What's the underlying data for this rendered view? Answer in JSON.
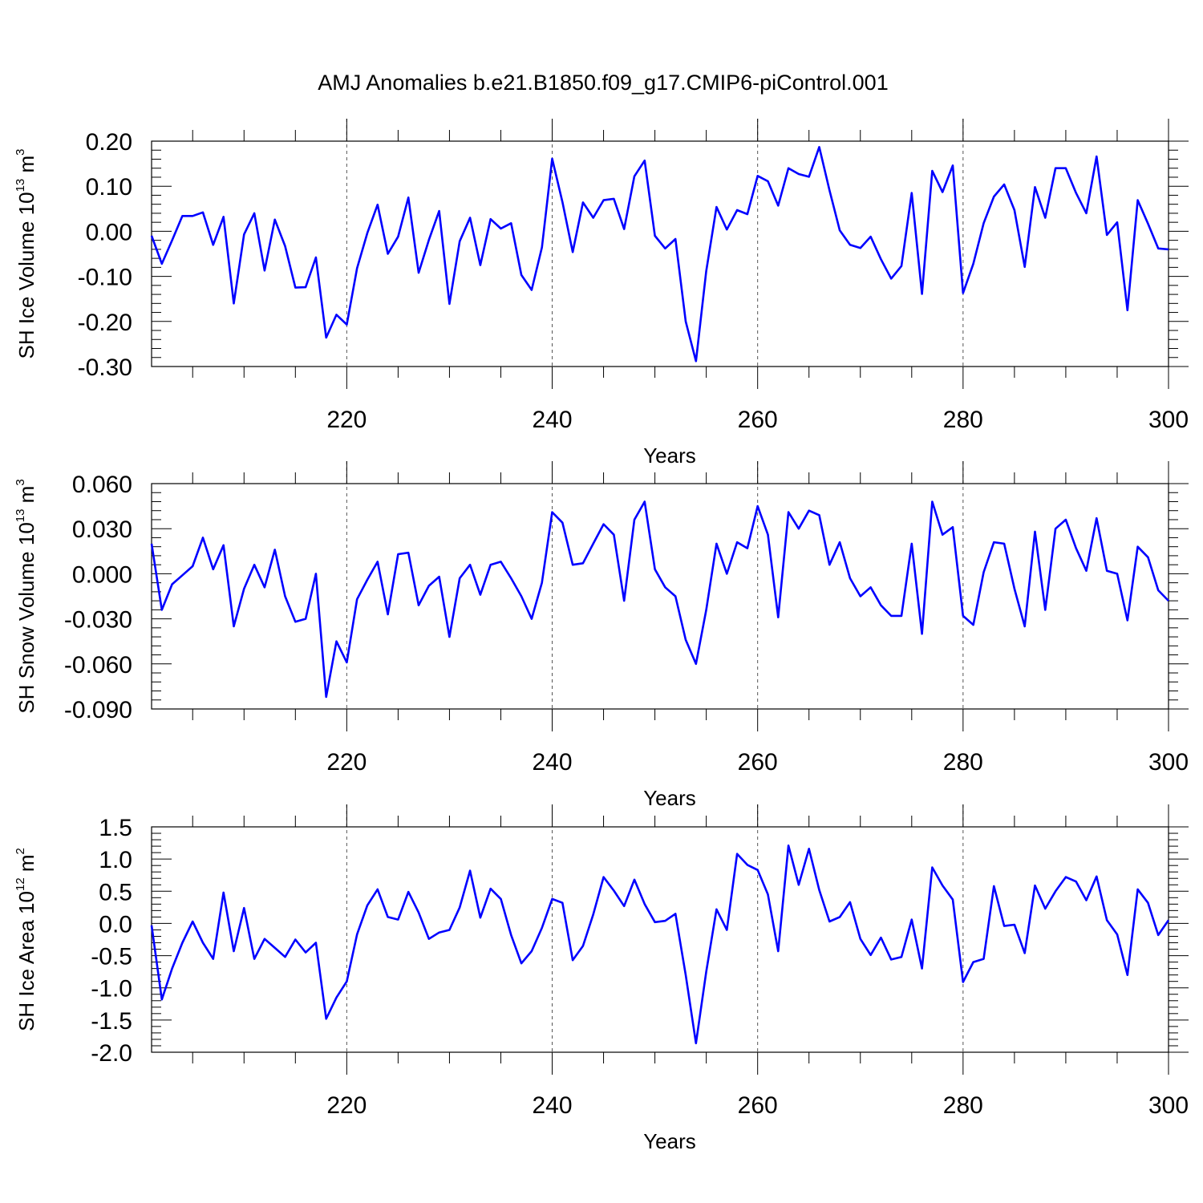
{
  "title": "AMJ Anomalies b.e21.B1850.f09_g17.CMIP6-piControl.001",
  "colors": {
    "line": "#0000ff",
    "axes": "#000000",
    "grid": "#555555"
  },
  "chart_data": [
    {
      "type": "line",
      "ylabel_main": "SH Ice Volume 10",
      "ylabel_exp": "13",
      "ylabel_unit": " m",
      "ylabel_unit_exp": "3",
      "xlabel": "Years",
      "xlim": [
        201,
        300
      ],
      "ylim": [
        -0.3,
        0.2
      ],
      "yticks": [
        0.2,
        0.1,
        0.0,
        -0.1,
        -0.2,
        -0.3
      ],
      "ytick_labels": [
        "0.20",
        "0.10",
        "0.00",
        "-0.10",
        "-0.20",
        "-0.30"
      ],
      "yminor_step": 0.02,
      "xticks": [
        220,
        240,
        260,
        280,
        300
      ],
      "xtick_labels": [
        "220",
        "240",
        "260",
        "280",
        "300"
      ],
      "grid_x": [
        220,
        240,
        260,
        280
      ],
      "series": [
        {
          "name": "SH Ice Volume",
          "x_start": 201,
          "values": [
            -0.01,
            -0.072,
            -0.02,
            0.034,
            0.034,
            0.042,
            -0.03,
            0.032,
            -0.16,
            -0.007,
            0.04,
            -0.087,
            0.026,
            -0.033,
            -0.125,
            -0.124,
            -0.058,
            -0.236,
            -0.185,
            -0.207,
            -0.082,
            -0.004,
            0.059,
            -0.05,
            -0.012,
            0.075,
            -0.092,
            -0.019,
            0.045,
            -0.161,
            -0.022,
            0.03,
            -0.075,
            0.027,
            0.006,
            0.018,
            -0.097,
            -0.13,
            -0.036,
            0.161,
            0.065,
            -0.046,
            0.064,
            0.03,
            0.069,
            0.072,
            0.005,
            0.122,
            0.157,
            -0.01,
            -0.038,
            -0.017,
            -0.2,
            -0.288,
            -0.088,
            0.054,
            0.004,
            0.047,
            0.038,
            0.123,
            0.111,
            0.057,
            0.14,
            0.127,
            0.121,
            0.187,
            0.091,
            0.002,
            -0.03,
            -0.037,
            -0.012,
            -0.062,
            -0.105,
            -0.077,
            0.085,
            -0.139,
            0.134,
            0.087,
            0.146,
            -0.137,
            -0.072,
            0.018,
            0.077,
            0.104,
            0.047,
            -0.079,
            0.098,
            0.03,
            0.14,
            0.14,
            0.085,
            0.04,
            0.166,
            -0.008,
            0.02,
            -0.175,
            0.069,
            0.017,
            -0.038,
            -0.04
          ]
        }
      ]
    },
    {
      "type": "line",
      "ylabel_main": "SH Snow Volume 10",
      "ylabel_exp": "13",
      "ylabel_unit": " m",
      "ylabel_unit_exp": "3",
      "xlabel": "Years",
      "xlim": [
        201,
        300
      ],
      "ylim": [
        -0.09,
        0.06
      ],
      "yticks": [
        0.06,
        0.03,
        0.0,
        -0.03,
        -0.06,
        -0.09
      ],
      "ytick_labels": [
        "0.060",
        "0.030",
        "0.000",
        "-0.030",
        "-0.060",
        "-0.090"
      ],
      "yminor_step": 0.006,
      "xticks": [
        220,
        240,
        260,
        280,
        300
      ],
      "xtick_labels": [
        "220",
        "240",
        "260",
        "280",
        "300"
      ],
      "grid_x": [
        220,
        240,
        260,
        280
      ],
      "series": [
        {
          "name": "SH Snow Volume",
          "x_start": 201,
          "values": [
            0.02,
            -0.024,
            -0.007,
            -0.001,
            0.005,
            0.024,
            0.003,
            0.019,
            -0.035,
            -0.01,
            0.006,
            -0.009,
            0.016,
            -0.015,
            -0.032,
            -0.03,
            0.0,
            -0.082,
            -0.045,
            -0.059,
            -0.017,
            -0.004,
            0.008,
            -0.027,
            0.013,
            0.014,
            -0.021,
            -0.008,
            -0.002,
            -0.042,
            -0.003,
            0.006,
            -0.014,
            0.006,
            0.008,
            -0.003,
            -0.015,
            -0.03,
            -0.006,
            0.041,
            0.034,
            0.006,
            0.007,
            0.02,
            0.033,
            0.026,
            -0.018,
            0.036,
            0.048,
            0.003,
            -0.009,
            -0.015,
            -0.044,
            -0.06,
            -0.024,
            0.02,
            0.0,
            0.021,
            0.017,
            0.045,
            0.026,
            -0.029,
            0.041,
            0.03,
            0.042,
            0.039,
            0.006,
            0.021,
            -0.003,
            -0.015,
            -0.009,
            -0.021,
            -0.028,
            -0.028,
            0.02,
            -0.04,
            0.048,
            0.026,
            0.031,
            -0.028,
            -0.034,
            0.001,
            0.021,
            0.02,
            -0.01,
            -0.035,
            0.028,
            -0.024,
            0.03,
            0.036,
            0.017,
            0.002,
            0.037,
            0.002,
            0.0,
            -0.031,
            0.018,
            0.011,
            -0.011,
            -0.018
          ]
        }
      ]
    },
    {
      "type": "line",
      "ylabel_main": "SH Ice Area 10",
      "ylabel_exp": "12",
      "ylabel_unit": " m",
      "ylabel_unit_exp": "2",
      "xlabel": "Years",
      "xlim": [
        201,
        300
      ],
      "ylim": [
        -2.0,
        1.5
      ],
      "yticks": [
        1.5,
        1.0,
        0.5,
        0.0,
        -0.5,
        -1.0,
        -1.5,
        -2.0
      ],
      "ytick_labels": [
        "1.5",
        "1.0",
        "0.5",
        "0.0",
        "-0.5",
        "-1.0",
        "-1.5",
        "-2.0"
      ],
      "yminor_step": 0.1,
      "xticks": [
        220,
        240,
        260,
        280,
        300
      ],
      "xtick_labels": [
        "220",
        "240",
        "260",
        "280",
        "300"
      ],
      "grid_x": [
        220,
        240,
        260,
        280
      ],
      "series": [
        {
          "name": "SH Ice Area",
          "x_start": 201,
          "values": [
            -0.03,
            -1.18,
            -0.7,
            -0.3,
            0.03,
            -0.3,
            -0.55,
            0.48,
            -0.43,
            0.24,
            -0.55,
            -0.24,
            -0.38,
            -0.52,
            -0.25,
            -0.45,
            -0.3,
            -1.48,
            -1.15,
            -0.9,
            -0.17,
            0.28,
            0.53,
            0.1,
            0.06,
            0.49,
            0.17,
            -0.24,
            -0.14,
            -0.1,
            0.25,
            0.82,
            0.09,
            0.54,
            0.38,
            -0.18,
            -0.62,
            -0.43,
            -0.07,
            0.38,
            0.32,
            -0.57,
            -0.35,
            0.14,
            0.72,
            0.51,
            0.27,
            0.68,
            0.3,
            0.02,
            0.04,
            0.15,
            -0.8,
            -1.86,
            -0.75,
            0.22,
            -0.1,
            1.08,
            0.91,
            0.83,
            0.45,
            -0.43,
            1.21,
            0.6,
            1.16,
            0.52,
            0.03,
            0.1,
            0.33,
            -0.24,
            -0.49,
            -0.22,
            -0.56,
            -0.52,
            0.06,
            -0.7,
            0.87,
            0.59,
            0.37,
            -0.91,
            -0.6,
            -0.55,
            0.58,
            -0.04,
            -0.02,
            -0.46,
            0.59,
            0.23,
            0.5,
            0.72,
            0.65,
            0.36,
            0.73,
            0.05,
            -0.17,
            -0.8,
            0.53,
            0.32,
            -0.18,
            0.05
          ]
        }
      ]
    }
  ]
}
